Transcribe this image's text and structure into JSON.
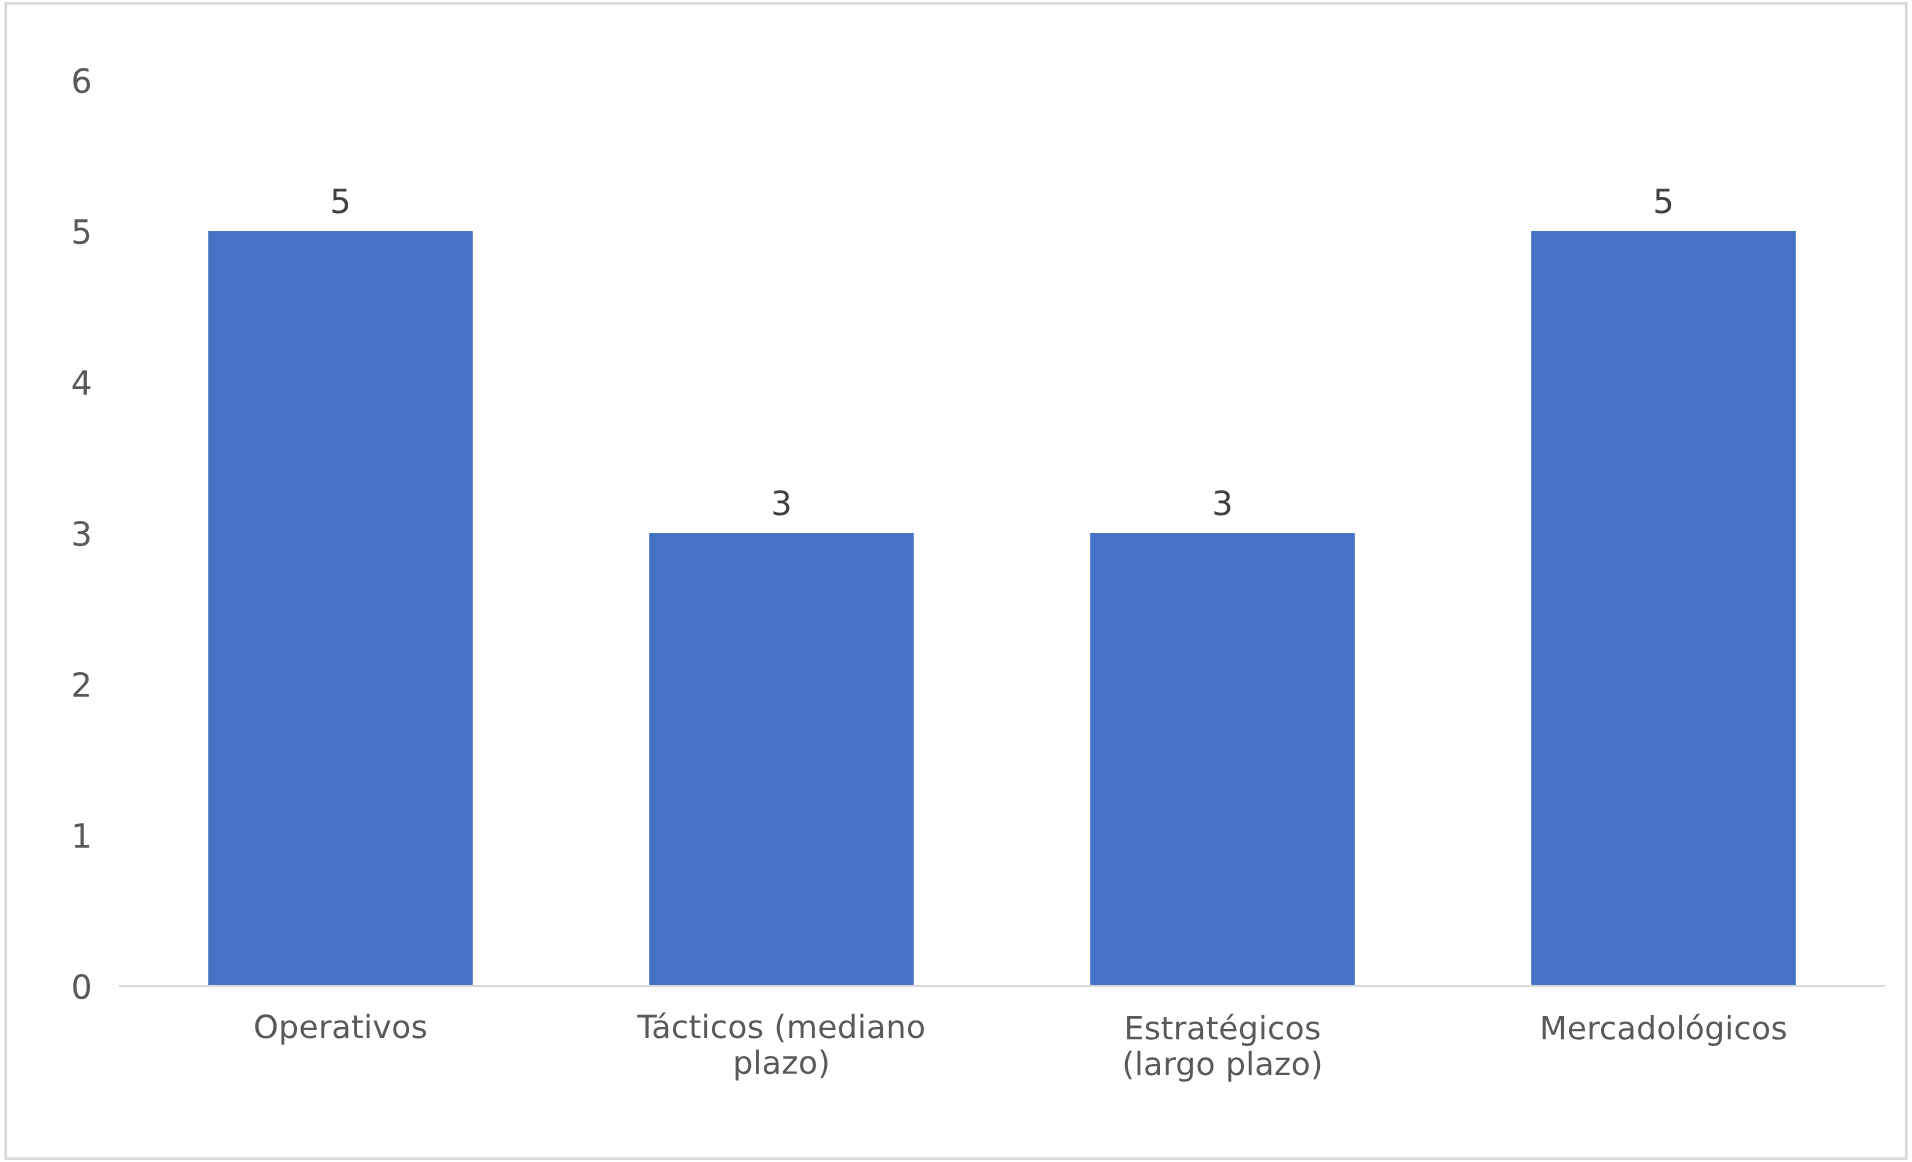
{
  "chart_data": {
    "type": "bar",
    "categories": [
      "Operativos",
      "Tácticos (mediano plazo)",
      "Estratégicos (largo plazo)",
      "Mercadológicos"
    ],
    "values": [
      5,
      3,
      3,
      5
    ],
    "color": "#4472c4",
    "ylim": [
      0,
      6
    ],
    "yticks": [
      0,
      1,
      2,
      3,
      4,
      5,
      6
    ],
    "data_labels": true,
    "grid": false,
    "legend": false
  }
}
